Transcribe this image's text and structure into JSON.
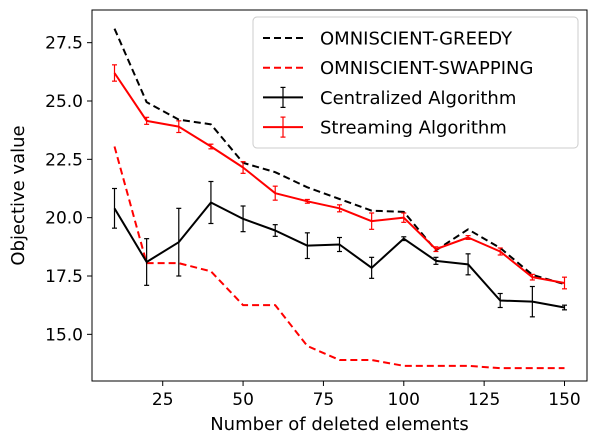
{
  "chart_data": {
    "type": "line",
    "title": "",
    "xlabel": "Number of deleted elements",
    "ylabel": "Objective value",
    "xlim": [
      3.0,
      157.0
    ],
    "ylim": [
      13.0,
      28.9
    ],
    "xticks": [
      25,
      50,
      75,
      100,
      125,
      150
    ],
    "yticks": [
      15.0,
      17.5,
      20.0,
      22.5,
      25.0,
      27.5
    ],
    "ytick_labels": [
      "15.0",
      "17.5",
      "20.0",
      "22.5",
      "25.0",
      "27.5"
    ],
    "grid": false,
    "legend_position": "top-right",
    "x": [
      10,
      20,
      30,
      40,
      50,
      60,
      70,
      80,
      90,
      100,
      110,
      120,
      130,
      140,
      150
    ],
    "series": [
      {
        "name": "OMNISCIENT-GREEDY",
        "style": "dashed",
        "color": "#000000",
        "values": [
          28.1,
          24.95,
          24.2,
          24.0,
          22.35,
          21.95,
          21.3,
          20.8,
          20.3,
          20.25,
          18.6,
          19.5,
          18.7,
          17.55,
          17.15
        ]
      },
      {
        "name": "OMNISCIENT-SWAPPING",
        "style": "dashed",
        "color": "#ff0000",
        "values": [
          23.05,
          18.05,
          18.05,
          17.7,
          16.25,
          16.25,
          14.5,
          13.9,
          13.9,
          13.65,
          13.65,
          13.65,
          13.55,
          13.55,
          13.55
        ]
      },
      {
        "name": "Centralized Algorithm",
        "style": "solid",
        "color": "#000000",
        "values": [
          20.4,
          18.1,
          18.95,
          20.65,
          19.95,
          19.45,
          18.8,
          18.85,
          17.85,
          19.1,
          18.15,
          18.0,
          16.45,
          16.4,
          16.15
        ],
        "errors": [
          0.85,
          1.0,
          1.45,
          0.9,
          0.55,
          0.25,
          0.55,
          0.3,
          0.45,
          0.08,
          0.15,
          0.45,
          0.3,
          0.65,
          0.1
        ]
      },
      {
        "name": "Streaming Algorithm",
        "style": "solid",
        "color": "#ff0000",
        "values": [
          26.2,
          24.15,
          23.9,
          23.05,
          22.15,
          21.05,
          20.7,
          20.4,
          19.85,
          20.0,
          18.65,
          19.15,
          18.55,
          17.45,
          17.2
        ],
        "errors": [
          0.35,
          0.15,
          0.25,
          0.1,
          0.25,
          0.3,
          0.08,
          0.15,
          0.35,
          0.2,
          0.1,
          0.08,
          0.15,
          0.12,
          0.25
        ]
      }
    ]
  }
}
